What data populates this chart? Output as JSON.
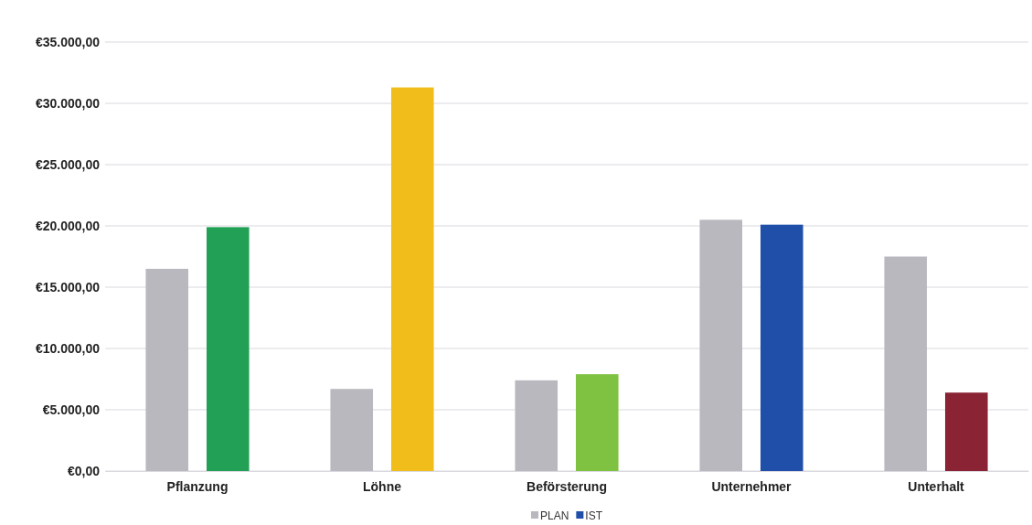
{
  "chart_data": {
    "type": "bar",
    "categories": [
      "Pflanzung",
      "Löhne",
      "Beförsterung",
      "Unternehmer",
      "Unterhalt"
    ],
    "series": [
      {
        "name": "PLAN",
        "color": "#b9b8bf",
        "values": [
          16500,
          6700,
          7400,
          20500,
          17500
        ]
      },
      {
        "name": "IST",
        "color": "#1f4fa8",
        "colors": [
          "#22a055",
          "#f0bd1b",
          "#7fc242",
          "#1f4fa8",
          "#8a2333"
        ],
        "values": [
          19900,
          31300,
          7900,
          20100,
          6400
        ]
      }
    ],
    "ylim": [
      0,
      35000
    ],
    "yticks": [
      {
        "value": 0,
        "label": "€0,00"
      },
      {
        "value": 5000,
        "label": "€5.000,00"
      },
      {
        "value": 10000,
        "label": "€10.000,00"
      },
      {
        "value": 15000,
        "label": "€15.000,00"
      },
      {
        "value": 20000,
        "label": "€20.000,00"
      },
      {
        "value": 25000,
        "label": "€25.000,00"
      },
      {
        "value": 30000,
        "label": "€30.000,00"
      },
      {
        "value": 35000,
        "label": "€35.000,00"
      }
    ],
    "grid": "y",
    "legend": "bottom"
  }
}
